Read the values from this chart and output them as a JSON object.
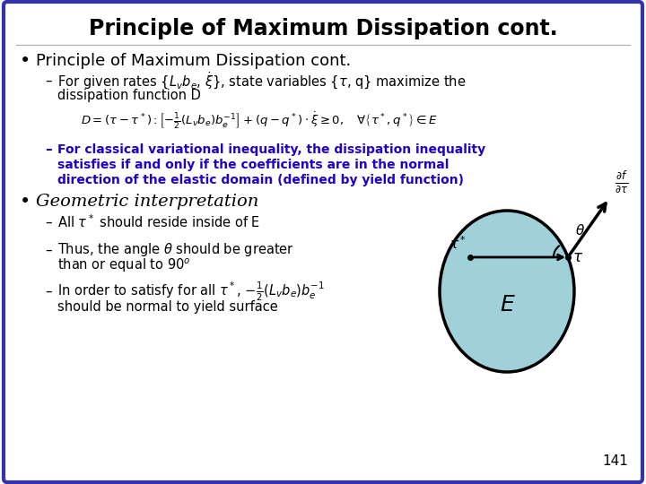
{
  "title": "Principle of Maximum Dissipation cont.",
  "bg_color": "#ffffff",
  "border_color": "#3333aa",
  "title_color": "#000000",
  "bullet_color": "#000000",
  "blue_text_color": "#2200cc",
  "sub_text_color": "#000000",
  "ellipse_fill": "#a0d0d8",
  "ellipse_edge": "#000000",
  "page_number": "141",
  "font_size_title": 17,
  "font_size_bullet1": 13,
  "font_size_sub": 10.5,
  "font_size_blue": 10.0,
  "font_size_formula": 9.5
}
